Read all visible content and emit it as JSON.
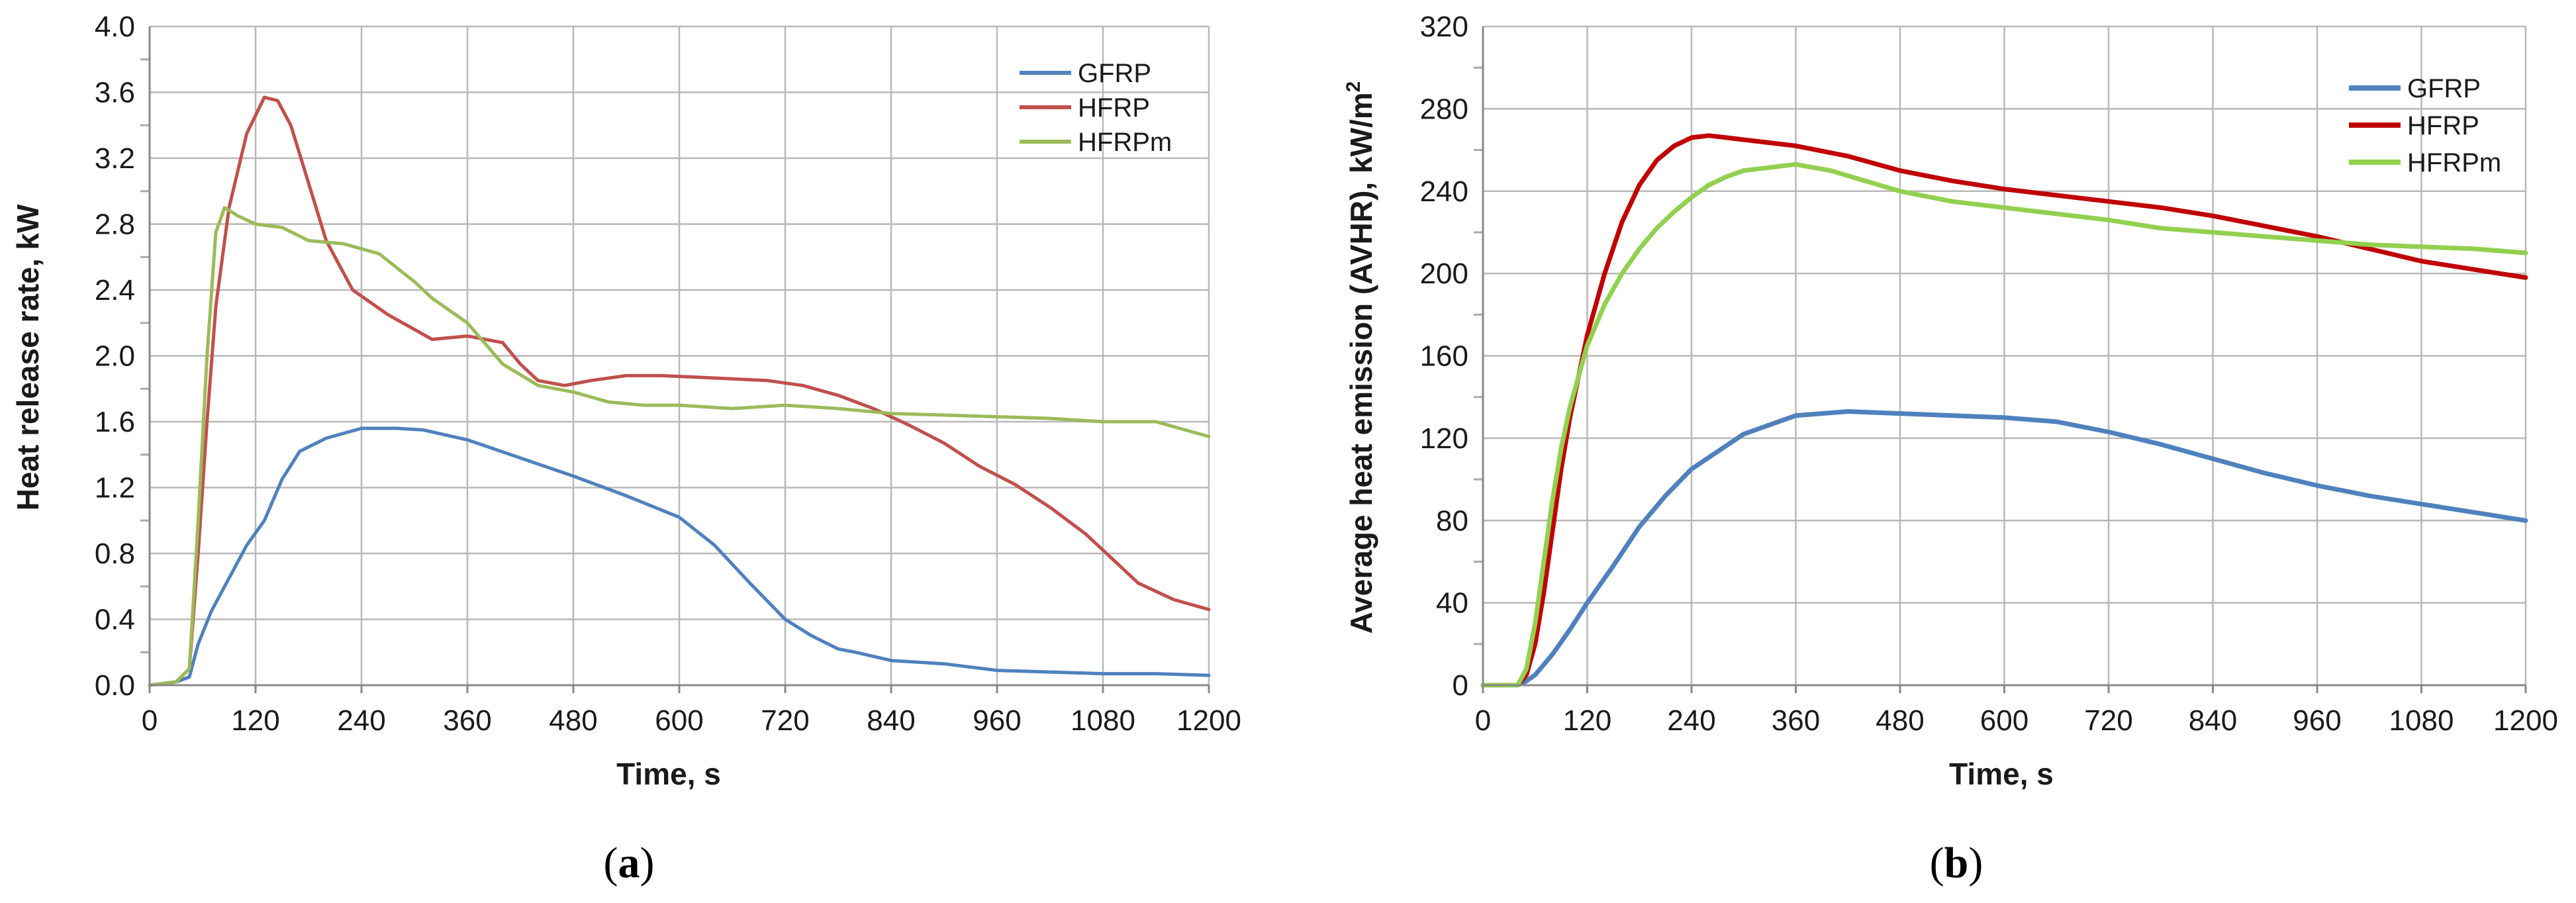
{
  "chart_data": [
    {
      "id": "a",
      "type": "line",
      "panel_label": "a",
      "xlabel": "Time, s",
      "ylabel": "Heat release rate,  kW",
      "xlim": [
        0,
        1200
      ],
      "ylim": [
        0,
        4.0
      ],
      "xticks": [
        "0",
        "120",
        "240",
        "360",
        "480",
        "600",
        "720",
        "840",
        "960",
        "1080",
        "1200"
      ],
      "yticks": [
        "0.0",
        "0.4",
        "0.8",
        "1.2",
        "1.6",
        "2.0",
        "2.4",
        "2.8",
        "3.2",
        "3.6",
        "4.0"
      ],
      "grid": true,
      "legend_position": "top-right",
      "series": [
        {
          "name": "GFRP",
          "color": "#4f81bd",
          "x": [
            0,
            30,
            45,
            55,
            70,
            90,
            110,
            130,
            150,
            170,
            200,
            240,
            280,
            310,
            360,
            420,
            480,
            540,
            600,
            640,
            680,
            720,
            750,
            780,
            800,
            840,
            900,
            960,
            1020,
            1080,
            1140,
            1200
          ],
          "y": [
            0,
            0.02,
            0.05,
            0.25,
            0.45,
            0.65,
            0.85,
            1.0,
            1.25,
            1.42,
            1.5,
            1.56,
            1.56,
            1.55,
            1.49,
            1.38,
            1.27,
            1.15,
            1.02,
            0.85,
            0.62,
            0.4,
            0.3,
            0.22,
            0.2,
            0.15,
            0.13,
            0.09,
            0.08,
            0.07,
            0.07,
            0.06
          ]
        },
        {
          "name": "HFRP",
          "color": "#c0504d",
          "x": [
            0,
            30,
            45,
            55,
            65,
            75,
            90,
            110,
            130,
            145,
            160,
            180,
            200,
            230,
            270,
            320,
            360,
            400,
            420,
            440,
            470,
            500,
            540,
            580,
            620,
            660,
            700,
            740,
            780,
            820,
            860,
            900,
            940,
            980,
            1020,
            1060,
            1080,
            1120,
            1160,
            1200
          ],
          "y": [
            0,
            0.02,
            0.1,
            0.8,
            1.6,
            2.3,
            2.9,
            3.35,
            3.57,
            3.55,
            3.4,
            3.05,
            2.7,
            2.4,
            2.25,
            2.1,
            2.12,
            2.08,
            1.95,
            1.85,
            1.82,
            1.85,
            1.88,
            1.88,
            1.87,
            1.86,
            1.85,
            1.82,
            1.76,
            1.68,
            1.58,
            1.47,
            1.33,
            1.22,
            1.08,
            0.92,
            0.82,
            0.62,
            0.52,
            0.46
          ]
        },
        {
          "name": "HFRPm",
          "color": "#9bbb59",
          "x": [
            0,
            30,
            45,
            55,
            65,
            75,
            85,
            100,
            120,
            150,
            180,
            220,
            260,
            300,
            320,
            360,
            400,
            440,
            480,
            520,
            560,
            600,
            660,
            720,
            780,
            840,
            900,
            960,
            1020,
            1080,
            1140,
            1200
          ],
          "y": [
            0,
            0.02,
            0.1,
            1.0,
            2.0,
            2.75,
            2.9,
            2.85,
            2.8,
            2.78,
            2.7,
            2.68,
            2.62,
            2.45,
            2.35,
            2.2,
            1.95,
            1.82,
            1.78,
            1.72,
            1.7,
            1.7,
            1.68,
            1.7,
            1.68,
            1.65,
            1.64,
            1.63,
            1.62,
            1.6,
            1.6,
            1.51
          ]
        }
      ]
    },
    {
      "id": "b",
      "type": "line",
      "panel_label": "b",
      "xlabel": "Time, s",
      "ylabel_main": "Average heat emission (AVHR),  kW/m",
      "ylabel_sup": "2",
      "xlim": [
        0,
        1200
      ],
      "ylim": [
        0,
        320
      ],
      "xticks": [
        "0",
        "120",
        "240",
        "360",
        "480",
        "600",
        "720",
        "840",
        "960",
        "1080",
        "1200"
      ],
      "yticks": [
        "0",
        "40",
        "80",
        "120",
        "160",
        "200",
        "240",
        "280",
        "320"
      ],
      "grid": true,
      "legend_position": "top-right",
      "series": [
        {
          "name": "GFRP",
          "color": "#4f81bd",
          "x": [
            0,
            40,
            50,
            60,
            80,
            100,
            120,
            150,
            180,
            210,
            240,
            300,
            360,
            420,
            480,
            540,
            600,
            660,
            720,
            780,
            840,
            900,
            960,
            1020,
            1080,
            1140,
            1200
          ],
          "y": [
            0,
            0,
            2,
            5,
            15,
            27,
            40,
            58,
            77,
            92,
            105,
            122,
            131,
            133,
            132,
            131,
            130,
            128,
            123,
            117,
            110,
            103,
            97,
            92,
            88,
            84,
            80
          ]
        },
        {
          "name": "HFRP",
          "color": "#c00000",
          "x": [
            0,
            40,
            50,
            60,
            70,
            80,
            90,
            100,
            120,
            140,
            160,
            180,
            200,
            220,
            240,
            260,
            280,
            300,
            360,
            420,
            480,
            540,
            600,
            660,
            720,
            780,
            840,
            900,
            960,
            1020,
            1080,
            1140,
            1200
          ],
          "y": [
            0,
            0,
            5,
            20,
            45,
            75,
            105,
            130,
            170,
            200,
            225,
            243,
            255,
            262,
            266,
            267,
            266,
            265,
            262,
            257,
            250,
            245,
            241,
            238,
            235,
            232,
            228,
            223,
            218,
            212,
            206,
            202,
            198
          ]
        },
        {
          "name": "HFRPm",
          "color": "#92d050",
          "x": [
            0,
            40,
            50,
            60,
            70,
            80,
            90,
            100,
            120,
            140,
            160,
            180,
            200,
            220,
            240,
            260,
            280,
            300,
            340,
            360,
            400,
            480,
            540,
            600,
            660,
            720,
            780,
            840,
            900,
            960,
            1020,
            1080,
            1140,
            1200
          ],
          "y": [
            0,
            0,
            8,
            30,
            60,
            90,
            115,
            135,
            165,
            185,
            200,
            212,
            222,
            230,
            237,
            243,
            247,
            250,
            252,
            253,
            250,
            240,
            235,
            232,
            229,
            226,
            222,
            220,
            218,
            216,
            214,
            213,
            212,
            210
          ]
        }
      ]
    }
  ]
}
